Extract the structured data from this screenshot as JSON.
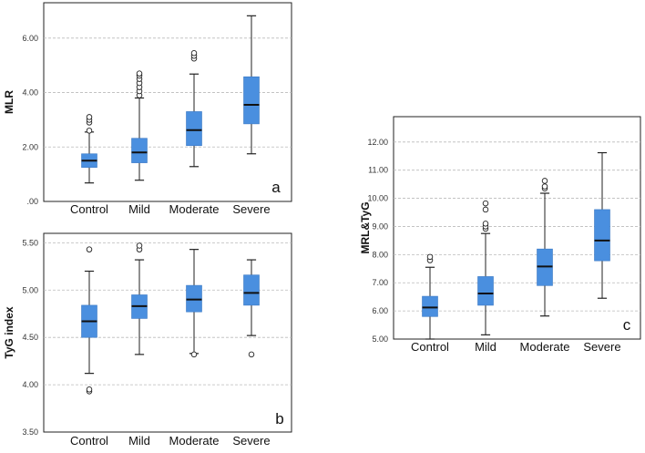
{
  "chart_data": [
    {
      "type": "boxplot",
      "panel_letter": "a",
      "ylabel": "MLR",
      "ylim": [
        0,
        7.3
      ],
      "yticks": [
        0,
        2,
        4,
        6
      ],
      "ytick_labels": [
        ".00",
        "2.00",
        "4.00",
        "6.00"
      ],
      "grid": true,
      "categories": [
        "Control",
        "Mild",
        "Moderate",
        "Severe"
      ],
      "boxes": [
        {
          "whisker_low": 0.68,
          "q1": 1.25,
          "median": 1.5,
          "q3": 1.75,
          "whisker_high": 2.55,
          "outliers": [
            2.6,
            2.9,
            3.0,
            3.1
          ]
        },
        {
          "whisker_low": 0.78,
          "q1": 1.42,
          "median": 1.8,
          "q3": 2.32,
          "whisker_high": 3.8,
          "outliers": [
            3.9,
            4.05,
            4.2,
            4.35,
            4.5,
            4.62,
            4.7
          ]
        },
        {
          "whisker_low": 1.28,
          "q1": 2.05,
          "median": 2.62,
          "q3": 3.3,
          "whisker_high": 4.68,
          "outliers": [
            5.25,
            5.35,
            5.45
          ]
        },
        {
          "whisker_low": 1.75,
          "q1": 2.85,
          "median": 3.55,
          "q3": 4.58,
          "whisker_high": 6.82,
          "outliers": []
        }
      ]
    },
    {
      "type": "boxplot",
      "panel_letter": "b",
      "ylabel": "TyG index",
      "ylim": [
        3.5,
        5.6
      ],
      "yticks": [
        3.5,
        4.0,
        4.5,
        5.0,
        5.5
      ],
      "ytick_labels": [
        "3.50",
        "4.00",
        "4.50",
        "5.00",
        "5.50"
      ],
      "grid": true,
      "categories": [
        "Control",
        "Mild",
        "Moderate",
        "Severe"
      ],
      "boxes": [
        {
          "whisker_low": 4.12,
          "q1": 4.5,
          "median": 4.67,
          "q3": 4.84,
          "whisker_high": 5.2,
          "outliers": [
            3.93,
            3.95,
            5.43
          ]
        },
        {
          "whisker_low": 4.32,
          "q1": 4.7,
          "median": 4.83,
          "q3": 4.95,
          "whisker_high": 5.32,
          "outliers": [
            5.43,
            5.47
          ]
        },
        {
          "whisker_low": 4.33,
          "q1": 4.77,
          "median": 4.9,
          "q3": 5.05,
          "whisker_high": 5.43,
          "outliers": [
            4.32
          ]
        },
        {
          "whisker_low": 4.52,
          "q1": 4.84,
          "median": 4.97,
          "q3": 5.16,
          "whisker_high": 5.32,
          "outliers": [
            4.32
          ]
        }
      ]
    },
    {
      "type": "boxplot",
      "panel_letter": "c",
      "ylabel": "MRL&TyG",
      "ylim": [
        5.0,
        12.9
      ],
      "yticks": [
        5,
        6,
        7,
        8,
        9,
        10,
        11,
        12
      ],
      "ytick_labels": [
        "5.00",
        "6.00",
        "7.00",
        "8.00",
        "9.00",
        "10.00",
        "11.00",
        "12.00"
      ],
      "grid": true,
      "categories": [
        "Control",
        "Mild",
        "Moderate",
        "Severe"
      ],
      "boxes": [
        {
          "whisker_low": 5.0,
          "q1": 5.8,
          "median": 6.12,
          "q3": 6.52,
          "whisker_high": 7.55,
          "outliers": [
            7.8,
            7.92
          ]
        },
        {
          "whisker_low": 5.15,
          "q1": 6.2,
          "median": 6.62,
          "q3": 7.22,
          "whisker_high": 8.75,
          "outliers": [
            8.92,
            9.0,
            9.1,
            9.6,
            9.82
          ]
        },
        {
          "whisker_low": 5.82,
          "q1": 6.9,
          "median": 7.58,
          "q3": 8.2,
          "whisker_high": 10.18,
          "outliers": [
            10.35,
            10.42,
            10.62
          ]
        },
        {
          "whisker_low": 6.45,
          "q1": 7.78,
          "median": 8.5,
          "q3": 9.6,
          "whisker_high": 11.62,
          "outliers": []
        }
      ]
    }
  ],
  "colors": {
    "box_fill": "#4a8fdf",
    "box_stroke": "#3b78c4",
    "median": "#111111",
    "whisker": "#222222",
    "grid": "#bbbbbb",
    "frame": "#222222"
  }
}
